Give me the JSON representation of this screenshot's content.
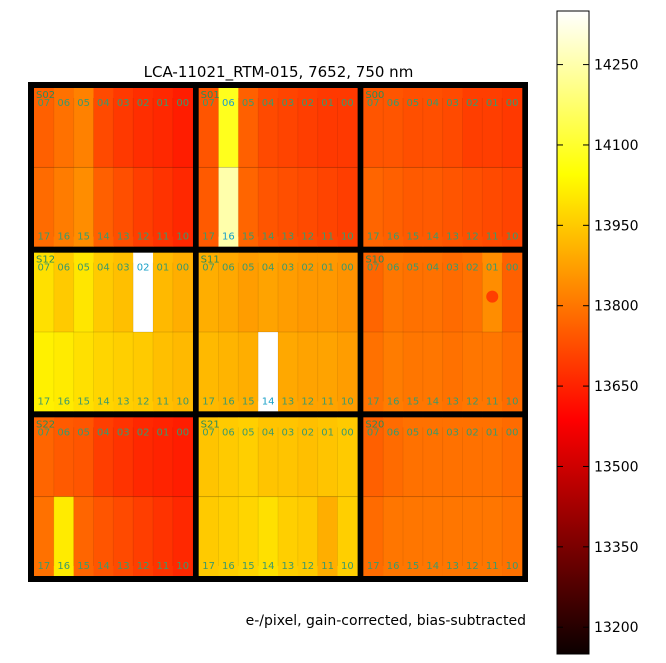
{
  "chart_data": {
    "type": "heatmap",
    "title": "LCA-11021_RTM-015, 7652, 750 nm",
    "caption": "e-/pixel, gain-corrected, bias-subtracted",
    "colorbar": {
      "cmap": "hot",
      "range": [
        13150,
        14350
      ],
      "tick_labels": [
        "14250",
        "14100",
        "13950",
        "13800",
        "13650",
        "13500",
        "13350",
        "13200"
      ],
      "tick_values": [
        14250,
        14100,
        13950,
        13800,
        13650,
        13500,
        13350,
        13200
      ]
    },
    "top_channel_labels": [
      "07",
      "06",
      "05",
      "04",
      "03",
      "02",
      "01",
      "00"
    ],
    "bottom_channel_labels": [
      "17",
      "16",
      "15",
      "14",
      "13",
      "12",
      "11",
      "10"
    ],
    "sensors": [
      {
        "name": "S02",
        "row": 0,
        "col": 0,
        "top": [
          13760,
          13790,
          13820,
          13720,
          13690,
          13670,
          13660,
          13640
        ],
        "bottom": [
          13780,
          13810,
          13840,
          13760,
          13730,
          13700,
          13680,
          13660
        ]
      },
      {
        "name": "S01",
        "row": 0,
        "col": 1,
        "top": [
          13740,
          14080,
          13760,
          13720,
          13710,
          13700,
          13690,
          13690
        ],
        "bottom": [
          13750,
          14250,
          13770,
          13740,
          13730,
          13720,
          13710,
          13700
        ]
      },
      {
        "name": "S00",
        "row": 0,
        "col": 2,
        "top": [
          13740,
          13740,
          13730,
          13730,
          13720,
          13700,
          13700,
          13690
        ],
        "bottom": [
          13770,
          13760,
          13750,
          13750,
          13740,
          13730,
          13720,
          13710
        ]
      },
      {
        "name": "S12",
        "row": 1,
        "col": 0,
        "top": [
          13990,
          13950,
          14000,
          13950,
          13930,
          14350,
          13920,
          13900
        ],
        "bottom": [
          14020,
          14010,
          13990,
          13970,
          13960,
          13950,
          13930,
          13920
        ]
      },
      {
        "name": "S11",
        "row": 1,
        "col": 1,
        "top": [
          13900,
          13890,
          13870,
          13880,
          13870,
          13860,
          13860,
          13850
        ],
        "bottom": [
          13920,
          13910,
          13900,
          14350,
          13890,
          13880,
          13880,
          13870
        ]
      },
      {
        "name": "S10",
        "row": 1,
        "col": 2,
        "top": [
          13770,
          13800,
          13790,
          13790,
          13780,
          13790,
          13840,
          13760
        ],
        "bottom": [
          13790,
          13810,
          13800,
          13800,
          13790,
          13800,
          13800,
          13780
        ]
      },
      {
        "name": "S22",
        "row": 2,
        "col": 0,
        "top": [
          13770,
          13750,
          13740,
          13700,
          13680,
          13660,
          13650,
          13640
        ],
        "bottom": [
          13790,
          14010,
          13770,
          13740,
          13720,
          13700,
          13680,
          13660
        ]
      },
      {
        "name": "S21",
        "row": 2,
        "col": 1,
        "top": [
          13940,
          13950,
          13960,
          13940,
          13940,
          13930,
          13940,
          13950
        ],
        "bottom": [
          13950,
          13960,
          13970,
          13990,
          13960,
          13950,
          13900,
          13960
        ]
      },
      {
        "name": "S20",
        "row": 2,
        "col": 2,
        "top": [
          13760,
          13780,
          13790,
          13790,
          13790,
          13790,
          13790,
          13780
        ],
        "bottom": [
          13780,
          13800,
          13800,
          13800,
          13800,
          13800,
          13800,
          13790
        ]
      }
    ]
  }
}
